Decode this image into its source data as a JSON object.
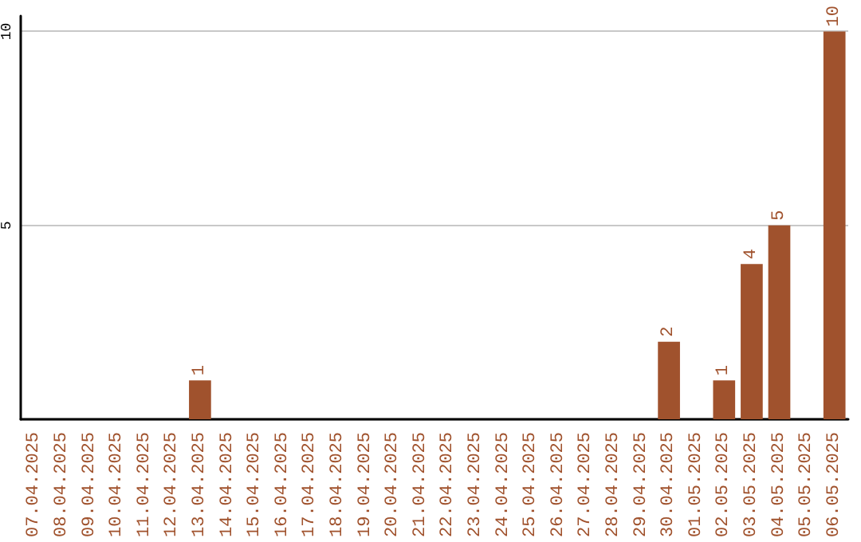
{
  "chart_data": {
    "type": "bar",
    "categories": [
      "07.04.2025",
      "08.04.2025",
      "09.04.2025",
      "10.04.2025",
      "11.04.2025",
      "12.04.2025",
      "13.04.2025",
      "14.04.2025",
      "15.04.2025",
      "16.04.2025",
      "17.04.2025",
      "18.04.2025",
      "19.04.2025",
      "20.04.2025",
      "21.04.2025",
      "22.04.2025",
      "23.04.2025",
      "24.04.2025",
      "25.04.2025",
      "26.04.2025",
      "27.04.2025",
      "28.04.2025",
      "29.04.2025",
      "30.04.2025",
      "01.05.2025",
      "02.05.2025",
      "03.05.2025",
      "04.05.2025",
      "05.05.2025",
      "06.05.2025"
    ],
    "values": [
      0,
      0,
      0,
      0,
      0,
      0,
      1,
      0,
      0,
      0,
      0,
      0,
      0,
      0,
      0,
      0,
      0,
      0,
      0,
      0,
      0,
      0,
      0,
      2,
      0,
      1,
      4,
      5,
      0,
      10
    ],
    "value_labels": [
      null,
      null,
      null,
      null,
      null,
      null,
      "1",
      null,
      null,
      null,
      null,
      null,
      null,
      null,
      null,
      null,
      null,
      null,
      null,
      null,
      null,
      null,
      null,
      "2",
      null,
      "1",
      "4",
      "5",
      null,
      "10"
    ],
    "color": "#a0522d",
    "ylim": [
      0,
      10.4
    ],
    "yticks": [
      {
        "value": 0,
        "label": null
      },
      5,
      10
    ],
    "grid": "y"
  }
}
